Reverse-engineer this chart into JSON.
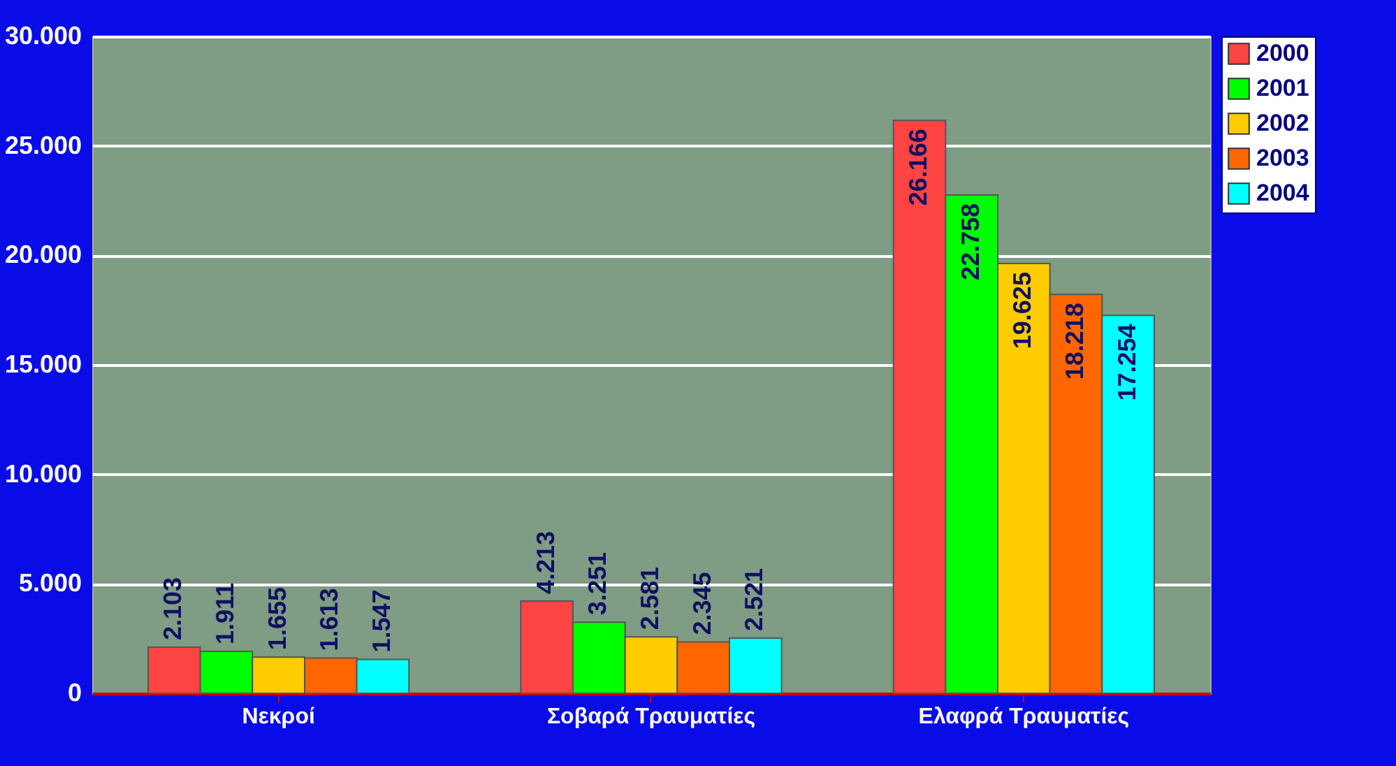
{
  "chart_data": {
    "type": "bar",
    "categories": [
      "Νεκροί",
      "Σοβαρά Τραυματίες",
      "Ελαφρά Τραυματίες"
    ],
    "series": [
      {
        "name": "2000",
        "color": "#ff4444",
        "values": [
          2103,
          4213,
          26166
        ],
        "value_labels": [
          "2.103",
          "4.213",
          "26.166"
        ]
      },
      {
        "name": "2001",
        "color": "#00ff00",
        "values": [
          1911,
          3251,
          22758
        ],
        "value_labels": [
          "1.911",
          "3.251",
          "22.758"
        ]
      },
      {
        "name": "2002",
        "color": "#ffcc00",
        "values": [
          1655,
          2581,
          19625
        ],
        "value_labels": [
          "1.655",
          "2.581",
          "19.625"
        ]
      },
      {
        "name": "2003",
        "color": "#ff6600",
        "values": [
          1613,
          2345,
          18218
        ],
        "value_labels": [
          "1.613",
          "2.345",
          "18.218"
        ]
      },
      {
        "name": "2004",
        "color": "#00ffff",
        "values": [
          1547,
          2521,
          17254
        ],
        "value_labels": [
          "1.547",
          "2.521",
          "17.254"
        ]
      }
    ],
    "ylim": [
      0,
      30000
    ],
    "yticks": [
      {
        "value": 0,
        "label": "0"
      },
      {
        "value": 5000,
        "label": "5.000"
      },
      {
        "value": 10000,
        "label": "10.000"
      },
      {
        "value": 15000,
        "label": "15.000"
      },
      {
        "value": 20000,
        "label": "20.000"
      },
      {
        "value": 25000,
        "label": "25.000"
      },
      {
        "value": 30000,
        "label": "30.000"
      }
    ],
    "grid": "y",
    "legend": "right"
  }
}
